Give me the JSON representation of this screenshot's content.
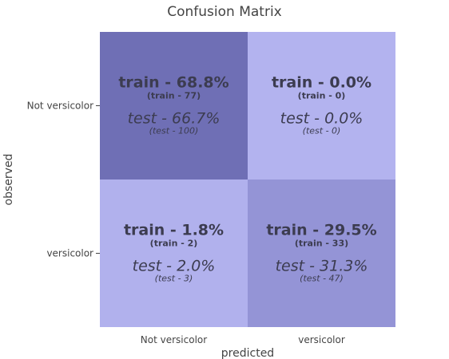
{
  "chart_data": {
    "type": "heatmap",
    "title": "Confusion Matrix",
    "xlabel": "predicted",
    "ylabel": "observed",
    "x_categories": [
      "Not versicolor",
      "versicolor"
    ],
    "y_categories": [
      "Not versicolor",
      "versicolor"
    ],
    "cells": [
      {
        "observed": "Not versicolor",
        "predicted": "Not versicolor",
        "train_label": "train - 68.8%",
        "train_count_label": "(train - 77)",
        "test_label": "test - 66.7%",
        "test_count_label": "(test - 100)",
        "train_pct": 68.8,
        "train_count": 77,
        "test_pct": 66.7,
        "test_count": 100,
        "color": "#6f6fb5"
      },
      {
        "observed": "Not versicolor",
        "predicted": "versicolor",
        "train_label": "train - 0.0%",
        "train_count_label": "(train - 0)",
        "test_label": "test - 0.0%",
        "test_count_label": "(test - 0)",
        "train_pct": 0.0,
        "train_count": 0,
        "test_pct": 0.0,
        "test_count": 0,
        "color": "#b3b3ef"
      },
      {
        "observed": "versicolor",
        "predicted": "Not versicolor",
        "train_label": "train - 1.8%",
        "train_count_label": "(train - 2)",
        "test_label": "test - 2.0%",
        "test_count_label": "(test - 3)",
        "train_pct": 1.8,
        "train_count": 2,
        "test_pct": 2.0,
        "test_count": 3,
        "color": "#b1b1ed"
      },
      {
        "observed": "versicolor",
        "predicted": "versicolor",
        "train_label": "train - 29.5%",
        "train_count_label": "(train - 33)",
        "test_label": "test - 31.3%",
        "test_count_label": "(test - 47)",
        "train_pct": 29.5,
        "train_count": 33,
        "test_pct": 31.3,
        "test_count": 47,
        "color": "#9494d6"
      }
    ],
    "grid": false,
    "legend": "none"
  }
}
